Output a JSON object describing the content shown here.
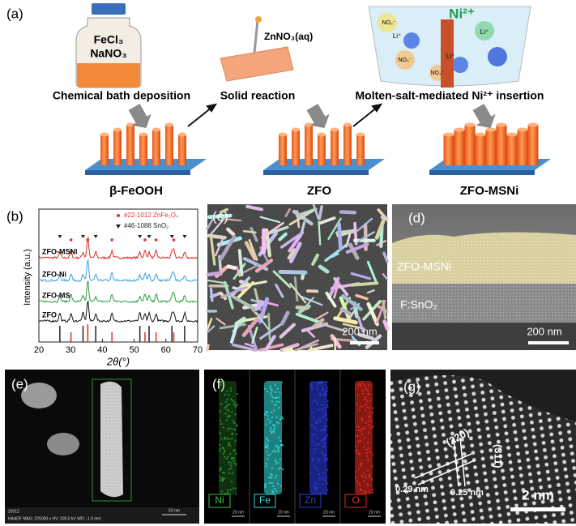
{
  "panel_a": {
    "label": "(a)",
    "bottle_labels": [
      "FeCl₃",
      "NaNO₃"
    ],
    "reagent": "ZnNO₃(aq)",
    "beaker_ion": "Ni²⁺",
    "beaker_species": [
      "NO₃⁻",
      "Li⁺"
    ],
    "steps": [
      "Chemical bath deposition",
      "Solid reaction",
      "Molten-salt-mediated Ni²⁺ insertion"
    ],
    "products": [
      "β-FeOOH",
      "ZFO",
      "ZFO-MSNi"
    ]
  },
  "panel_b": {
    "label": "(b)",
    "y_label": "Intensity (a.u.)",
    "x_label": "2θ(°)",
    "xlim": [
      20,
      70
    ],
    "xticks": [
      20,
      30,
      40,
      50,
      60,
      70
    ],
    "references": [
      {
        "name": "#22-1012 ZnFe₂O₄",
        "color": "#e03030",
        "positions": [
          30.1,
          35.4,
          43.0,
          53.4,
          56.9,
          62.5
        ]
      },
      {
        "name": "#46-1088 SnO₂",
        "color": "#222222",
        "positions": [
          26.6,
          33.9,
          37.9,
          51.8,
          54.7,
          61.9,
          65.9
        ]
      }
    ],
    "samples": [
      {
        "name": "ZFO-MSNi",
        "color": "#e02a2a"
      },
      {
        "name": "ZFO-Ni",
        "color": "#3aa0e0"
      },
      {
        "name": "ZFO-MS",
        "color": "#2e9a3e"
      },
      {
        "name": "ZFO",
        "color": "#111111"
      }
    ]
  },
  "panel_c": {
    "label": "(c)",
    "scale_bar": "200 nm"
  },
  "panel_d": {
    "label": "(d)",
    "layers": [
      "ZFO-MSNi",
      "F:SnO₂"
    ],
    "scale_bar": "200 nm"
  },
  "panel_e": {
    "label": "(e)",
    "footer": [
      "20312",
      "HAADF MAG: 225000 x HV: 200.0 kV WD: -1.0 mm"
    ],
    "scale_bar": "50 nm"
  },
  "panel_f": {
    "label": "(f)",
    "maps": [
      {
        "name": "Ni",
        "color": "#3cc43c"
      },
      {
        "name": "Fe",
        "color": "#35d6d6"
      },
      {
        "name": "Zn",
        "color": "#2a3cd8"
      },
      {
        "name": "O",
        "color": "#e02a20"
      }
    ],
    "scale_bar": "20 nm"
  },
  "panel_g": {
    "label": "(g)",
    "planes": [
      "(220)",
      "(311)"
    ],
    "spacings": [
      "0.29 nm",
      "0.25 nm"
    ],
    "scale_bar": "2 nm"
  }
}
